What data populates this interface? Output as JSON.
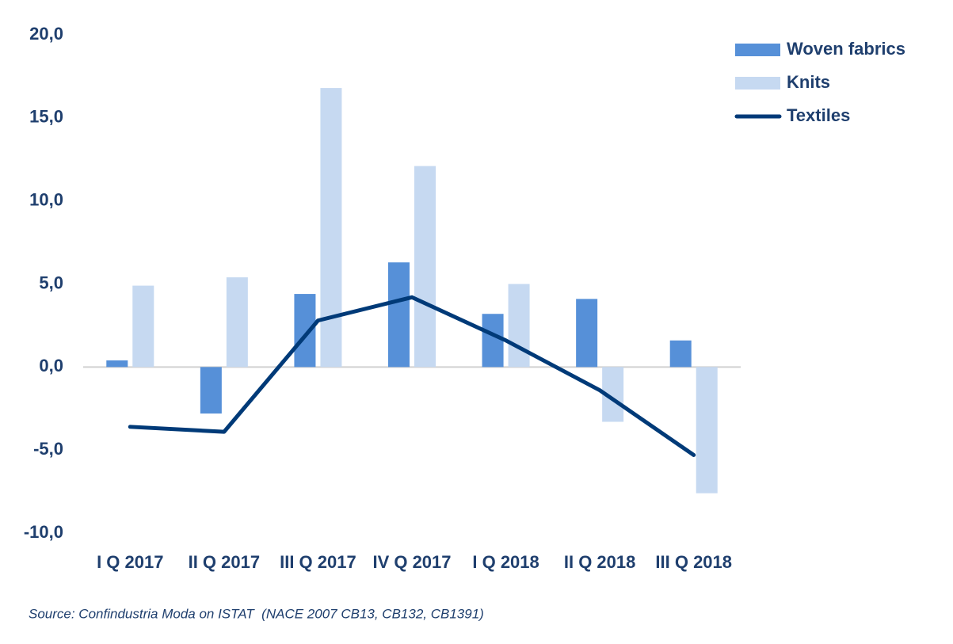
{
  "chart_data": {
    "type": "bar",
    "categories": [
      "I Q 2017",
      "II Q 2017",
      "III Q 2017",
      "IV Q 2017",
      "I Q 2018",
      "II Q 2018",
      "III Q 2018"
    ],
    "series": [
      {
        "name": "Woven fabrics",
        "color": "#5690d8",
        "values": [
          0.4,
          -2.8,
          4.4,
          6.3,
          3.2,
          4.1,
          1.6
        ]
      },
      {
        "name": "Knits",
        "color": "#c6d9f1",
        "values": [
          4.9,
          5.4,
          16.8,
          12.1,
          5.0,
          -3.3,
          -7.6
        ]
      },
      {
        "name": "Textiles",
        "type": "line",
        "color": "#003a78",
        "values": [
          -3.6,
          -3.9,
          2.8,
          4.2,
          1.6,
          -1.4,
          -5.3
        ]
      }
    ],
    "ylim": [
      -10,
      20
    ],
    "yticks": [
      {
        "value": -10,
        "label": "-10,0"
      },
      {
        "value": -5,
        "label": "-5,0"
      },
      {
        "value": 0,
        "label": "0,0"
      },
      {
        "value": 5,
        "label": "5,0"
      },
      {
        "value": 10,
        "label": "10,0"
      },
      {
        "value": 15,
        "label": "15,0"
      },
      {
        "value": 20,
        "label": "20,0"
      }
    ],
    "legend": "top-right",
    "source": "Source: Confindustria Moda on ISTAT  (NACE 2007 CB13, CB132, CB1391)"
  }
}
